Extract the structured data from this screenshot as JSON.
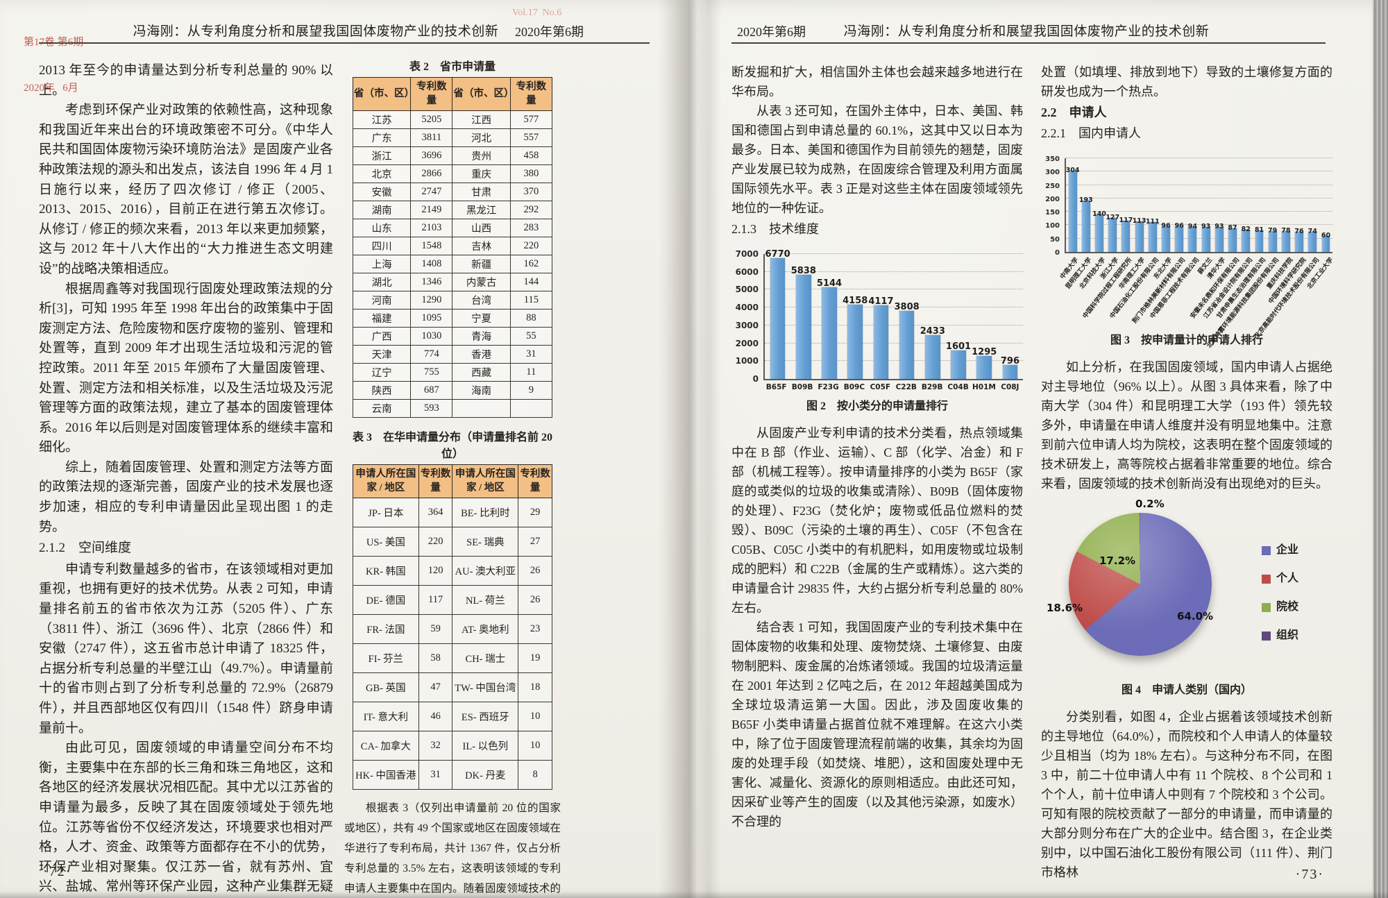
{
  "colors": {
    "bar": "#649fd3",
    "table_header_bg": "#f3bf85",
    "stamp_red": "#bd4437",
    "pie": [
      "#6c6cb8",
      "#bf4c49",
      "#8fae4a",
      "#5f4a7d"
    ]
  },
  "left_page": {
    "header": {
      "vol_line1": "第17卷 第6期",
      "vol_line2": "2020年   6月",
      "center": "冯海刚：从专利角度分析和展望我国固体废物产业的技术创新",
      "vol_en": "Vol.17  No.6",
      "issue": "2020年第6期"
    },
    "col1": {
      "p1": "2013 年至今的申请量达到分析专利总量的 90% 以上。",
      "p2": "考虑到环保产业对政策的依赖性高，这种现象和我国近年来出台的环境政策密不可分。《中华人民共和国固体废物污染环境防治法》是固废产业各种政策法规的源头和出发点，该法自 1996 年 4 月 1 日施行以来，经历了四次修订 / 修正（2005、2013、2015、2016），目前正在进行第五次修订。从修订 / 修正的频次来看，2013 年以来更加频繁，这与 2012 年十八大作出的“大力推进生态文明建设”的战略决策相适应。",
      "p3": "根据周鑫等对我国现行固废处理政策法规的分析[3]，可知 1995 年至 1998 年出台的政策集中于固废测定方法、危险废物和医疗废物的鉴别、管理和处置等，直到 2009 年才出现生活垃圾和污泥的管控政策。2011 年至 2015 年颁布了大量固废管理、处置、测定方法和相关标准，以及生活垃圾及污泥管理等方面的政策法规，建立了基本的固废管理体系。2016 年以后则是对固废管理体系的继续丰富和细化。",
      "p4": "综上，随着固废管理、处置和测定方法等方面的政策法规的逐渐完善，固废产业的技术发展也逐步加速，相应的专利申请量因此呈现出图 1 的走势。",
      "h212": "2.1.2　空间维度",
      "p5": "申请专利数量越多的省市，在该领域相对更加重视，也拥有更好的技术优势。从表 2 可知，申请量排名前五的省市依次为江苏（5205 件）、广东（3811 件）、浙江（3696 件）、北京（2866 件）和安徽（2747 件），这五省市总计申请了 18325 件，占据分析专利总量的半壁江山（49.7%）。申请量前十的省市则占到了分析专利总量的 72.9%（26879 件），并且西部地区仅有四川（1548 件）跻身申请量前十。",
      "p6": "由此可见，固废领域的申请量空间分布不均衡，主要集中在东部的长三角和珠三角地区，这和各地区的经济发展状况相匹配。其中尤以江苏省的申请量为最多，反映了其在固废领域处于领先地位。江苏等省份不仅经济发达，环境要求也相对严格，人才、资金、政策等方面都存在不小的优势，环保产业相对聚集。仅江苏一省，就有苏州、宜兴、盐城、常州等环保产业园，这种产业集群无疑促进了技术进步，也提升了技术竞争力。"
    },
    "table2": {
      "title": "表 2　省市申请量",
      "headers": [
        "省（市、区）",
        "专利数量",
        "省（市、区）",
        "专利数量"
      ],
      "rows": [
        [
          "江苏",
          "5205",
          "江西",
          "577"
        ],
        [
          "广东",
          "3811",
          "河北",
          "557"
        ],
        [
          "浙江",
          "3696",
          "贵州",
          "458"
        ],
        [
          "北京",
          "2866",
          "重庆",
          "380"
        ],
        [
          "安徽",
          "2747",
          "甘肃",
          "370"
        ],
        [
          "湖南",
          "2149",
          "黑龙江",
          "292"
        ],
        [
          "山东",
          "2103",
          "山西",
          "283"
        ],
        [
          "四川",
          "1548",
          "吉林",
          "220"
        ],
        [
          "上海",
          "1408",
          "新疆",
          "162"
        ],
        [
          "湖北",
          "1346",
          "内蒙古",
          "144"
        ],
        [
          "河南",
          "1290",
          "台湾",
          "115"
        ],
        [
          "福建",
          "1095",
          "宁夏",
          "88"
        ],
        [
          "广西",
          "1030",
          "青海",
          "55"
        ],
        [
          "天津",
          "774",
          "香港",
          "31"
        ],
        [
          "辽宁",
          "755",
          "西藏",
          "11"
        ],
        [
          "陕西",
          "687",
          "海南",
          "9"
        ],
        [
          "云南",
          "593",
          "",
          ""
        ]
      ]
    },
    "table3": {
      "title": "表 3　在华申请量分布（申请量排名前 20 位）",
      "headers": [
        "申请人所在国家 / 地区",
        "专利数量",
        "申请人所在国家 / 地区",
        "专利数量"
      ],
      "rows": [
        [
          "JP- 日本",
          "364",
          "BE- 比利时",
          "29"
        ],
        [
          "US- 美国",
          "220",
          "SE- 瑞典",
          "27"
        ],
        [
          "KR- 韩国",
          "120",
          "AU- 澳大利亚",
          "26"
        ],
        [
          "DE- 德国",
          "117",
          "NL- 荷兰",
          "26"
        ],
        [
          "FR- 法国",
          "59",
          "AT- 奥地利",
          "23"
        ],
        [
          "FI- 芬兰",
          "58",
          "CH- 瑞士",
          "19"
        ],
        [
          "GB- 英国",
          "47",
          "TW- 中国台湾",
          "18"
        ],
        [
          "IT- 意大利",
          "46",
          "ES- 西班牙",
          "10"
        ],
        [
          "CA- 加拿大",
          "32",
          "IL- 以色列",
          "10"
        ],
        [
          "HK- 中国香港",
          "31",
          "DK- 丹麦",
          "8"
        ]
      ]
    },
    "col2_p1": "根据表 3（仅列出申请量前 20 位的国家或地区），共有 49 个国家或地区在固废领域在华进行了专利布局，共计 1367 件，仅占分析专利总量的 3.5% 左右，这表明该领域的专利申请人主要集中在国内。随着固废领域技术的不断发展，竞争的不断加剧，市场的不",
    "page_no": "·72·"
  },
  "right_page": {
    "header": {
      "issue": "2020年第6期",
      "center": "冯海刚：从专利角度分析和展望我国固体废物产业的技术创新"
    },
    "col1": {
      "p1": "断发掘和扩大，相信国外主体也会越来越多地进行在华布局。",
      "p2": "从表 3 还可知，在国外主体中，日本、美国、韩国和德国占到申请总量的 60.1%，这其中又以日本为最多。日本、美国和德国作为目前领先的翘楚，固废产业发展已较为成熟，在固废综合管理及利用方面属国际领先水平。表 3 正是对这些主体在固废领域领先地位的一种佐证。",
      "h213": "2.1.3　技术维度",
      "fig2_caption": "图 2　按小类分的申请量排行",
      "p3": "从固废产业专利申请的技术分类看，热点领域集中在 B 部（作业、运输）、C 部（化学、冶金）和 F 部（机械工程等）。按申请量排序的小类为 B65F（家庭的或类似的垃圾的收集或清除）、B09B（固体废物的处理）、F23G（焚化炉；废物或低品位燃料的焚毁）、B09C（污染的土壤的再生）、C05F（不包含在 C05B、C05C 小类中的有机肥料，如用废物或垃圾制成的肥料）和 C22B（金属的生产或精炼）。这六类的申请量合计 29835 件，大约占据分析专利总量的 80% 左右。",
      "p4": "结合表 1 可知，我国固废产业的专利技术集中在固体废物的收集和处理、废物焚烧、土壤修复、由废物制肥料、废金属的冶炼诸领域。我国的垃圾清运量在 2001 年达到 2 亿吨之后，在 2012 年超越美国成为全球垃圾清运第一大国。因此，涉及固废收集的 B65F 小类申请量占据首位就不难理解。在这六小类中，除了位于固废管理流程前端的收集，其余均为固废的处理手段（如焚烧、堆肥），这和固废处理中无害化、减量化、资源化的原则相适应。由此还可知，因采矿业等产生的固废（以及其他污染源，如废水）不合理的"
    },
    "col2": {
      "p1": "处置（如填埋、排放到地下）导致的土壤修复方面的研发也成为一个热点。",
      "h22": "2.2　申请人",
      "h221": "2.2.1　国内申请人",
      "fig3_caption": "图 3　按申请量计的申请人排行",
      "p2": "如上分析，在我国固废领域，国内申请人占据绝对主导地位（96% 以上）。从图 3 具体来看，除了中南大学（304 件）和昆明理工大学（193 件）领先较多外，申请量在申请人维度并没有明显地集中。注意到前六位申请人均为院校，这表明在整个固废领域的技术研发上，高等院校占据着非常重要的地位。综合来看，固废领域的技术创新尚没有出现绝对的巨头。",
      "fig4_caption": "图 4　申请人类别（国内）",
      "p3": "分类别看，如图 4，企业占据着该领域技术创新的主导地位（64.0%），而院校和个人申请人的体量较少且相当（均为 18% 左右）。与这种分布不同，在图 3 中，前二十位申请人中有 11 个院校、8 个公司和 1 个个人，前十位申请人中则有 7 个院校和 3 个公司。可知有限的院校贡献了一部分的申请量，而申请量的大部分则分布在广大的企业中。结合图 3，在企业类别中，以中国石油化工股份有限公司（111 件）、荆门市格林"
    },
    "page_no": "·73·"
  },
  "chart_data": [
    {
      "id": "fig2",
      "type": "bar",
      "title": "按小类分的申请量排行",
      "categories": [
        "B65F",
        "B09B",
        "F23G",
        "B09C",
        "C05F",
        "C22B",
        "B29B",
        "C04B",
        "H01M",
        "C08J"
      ],
      "values": [
        6770,
        5838,
        5144,
        4158,
        4117,
        3808,
        2433,
        1601,
        1295,
        796
      ],
      "xlabel": "",
      "ylabel": "",
      "ylim": [
        0,
        7000
      ],
      "ytick_step": 1000,
      "grid": true,
      "bar_color": "#649fd3"
    },
    {
      "id": "fig3",
      "type": "bar",
      "title": "按申请量计的申请人排行",
      "categories": [
        "中南大学",
        "昆明理工大学",
        "北京科技大学",
        "浙江大学",
        "中国科学院过程工程研究所",
        "华南理工大学",
        "中国石油化工股份有限公司",
        "东北大学",
        "荆门市格林美新材料有限公司",
        "中国恩菲工程技术有限公司",
        "薛文兰",
        "清华大学",
        "安徽未名鼎和环保有限公司",
        "江苏省冶金设计院有限公司",
        "甘肃申晨生态治理有限公司",
        "北京神雾环境能源科技集团股份有限公司",
        "重庆科技学院",
        "中国环境科学研究院",
        "北京高能时代环境技术股份有限公司",
        "北京工业大学"
      ],
      "values": [
        304,
        193,
        140,
        127,
        117,
        113,
        111,
        96,
        96,
        94,
        93,
        93,
        87,
        82,
        81,
        79,
        78,
        76,
        74,
        60
      ],
      "xlabel": "",
      "ylabel": "",
      "ylim": [
        0,
        350
      ],
      "ytick_step": 50,
      "grid": true,
      "bar_color": "#649fd3"
    },
    {
      "id": "fig4",
      "type": "pie",
      "title": "申请人类别（国内）",
      "labels": [
        "企业",
        "个人",
        "院校",
        "组织"
      ],
      "values": [
        64.0,
        18.6,
        17.2,
        0.2
      ],
      "display_labels": [
        "64.0%",
        "18.6%",
        "17.2%",
        "0.2%"
      ],
      "colors": [
        "#6c6cb8",
        "#bf4c49",
        "#8fae4a",
        "#5f4a7d"
      ],
      "legend_position": "right"
    }
  ]
}
